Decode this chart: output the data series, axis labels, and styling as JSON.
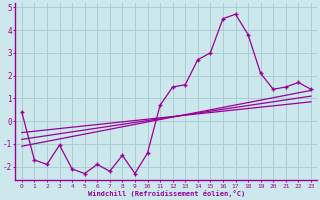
{
  "xlabel": "Windchill (Refroidissement éolien,°C)",
  "bg_color": "#cce8ec",
  "line_color": "#990099",
  "grid_color": "#aacdd4",
  "x_data": [
    0,
    1,
    2,
    3,
    4,
    5,
    6,
    7,
    8,
    9,
    10,
    11,
    12,
    13,
    14,
    15,
    16,
    17,
    18,
    19,
    20,
    21,
    22,
    23
  ],
  "y_main": [
    0.4,
    -1.7,
    -1.9,
    -1.05,
    -2.1,
    -2.3,
    -1.9,
    -2.2,
    -1.5,
    -2.3,
    -1.4,
    0.7,
    1.5,
    1.6,
    2.7,
    3.0,
    4.5,
    4.7,
    3.8,
    2.1,
    1.4,
    1.5,
    1.7,
    1.4
  ],
  "reg_lines": [
    {
      "x0": 0,
      "y0": -1.1,
      "x1": 23,
      "y1": 1.35
    },
    {
      "x0": 0,
      "y0": -0.8,
      "x1": 23,
      "y1": 1.1
    },
    {
      "x0": 0,
      "y0": -0.5,
      "x1": 23,
      "y1": 0.85
    }
  ],
  "xlim": [
    -0.5,
    23.5
  ],
  "ylim": [
    -2.6,
    5.2
  ],
  "yticks": [
    -2,
    -1,
    0,
    1,
    2,
    3,
    4,
    5
  ],
  "xticks": [
    0,
    1,
    2,
    3,
    4,
    5,
    6,
    7,
    8,
    9,
    10,
    11,
    12,
    13,
    14,
    15,
    16,
    17,
    18,
    19,
    20,
    21,
    22,
    23
  ],
  "font_family": "monospace"
}
